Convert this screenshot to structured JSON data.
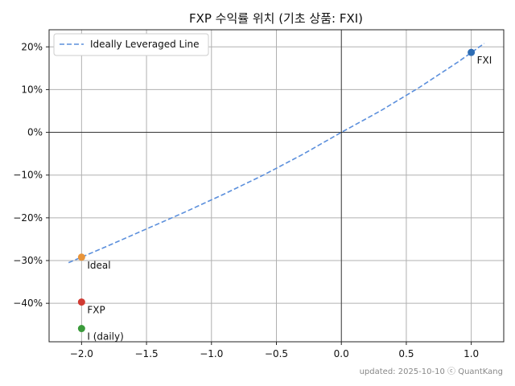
{
  "chart_data": {
    "type": "scatter",
    "title": "FXP 수익률 위치 (기초 상품: FXI)",
    "xlabel": "",
    "ylabel": "",
    "xlim": [
      -2.25,
      1.25
    ],
    "ylim": [
      -49,
      24
    ],
    "x_ticks": [
      -2.0,
      -1.5,
      -1.0,
      -0.5,
      0.0,
      0.5,
      1.0
    ],
    "x_tick_labels": [
      "−2.0",
      "−1.5",
      "−1.0",
      "−0.5",
      "0.0",
      "0.5",
      "1.0"
    ],
    "y_ticks": [
      20,
      10,
      0,
      -10,
      -20,
      -30,
      -40
    ],
    "y_tick_labels": [
      "20%",
      "10%",
      "0%",
      "−10%",
      "−20%",
      "−30%",
      "−40%"
    ],
    "grid": true,
    "legend": {
      "position": "top-left",
      "entries": [
        "Ideally Leveraged Line"
      ]
    },
    "series": [
      {
        "name": "Ideally Leveraged Line",
        "kind": "line",
        "style": "dashed",
        "color": "#5b8fdc",
        "x": [
          -2.1,
          -1.8,
          -1.5,
          -1.2,
          -0.9,
          -0.6,
          -0.3,
          0.0,
          0.3,
          0.6,
          0.9,
          1.1
        ],
        "y": [
          -30.5,
          -26.6,
          -22.6,
          -18.6,
          -14.4,
          -10.0,
          -5.2,
          0.0,
          5.0,
          10.5,
          16.5,
          20.8
        ]
      }
    ],
    "points": [
      {
        "label": "FXI",
        "x": 1.0,
        "y": 18.7,
        "color": "#2e6db4"
      },
      {
        "label": "Ideal",
        "x": -2.0,
        "y": -29.2,
        "color": "#e8943a"
      },
      {
        "label": "FXP",
        "x": -2.0,
        "y": -39.7,
        "color": "#d03a32"
      },
      {
        "label": "I (daily)",
        "x": -2.0,
        "y": -45.9,
        "color": "#3a9a3a"
      }
    ]
  },
  "footer": "updated: 2025-10-10 ⓒ QuantKang"
}
